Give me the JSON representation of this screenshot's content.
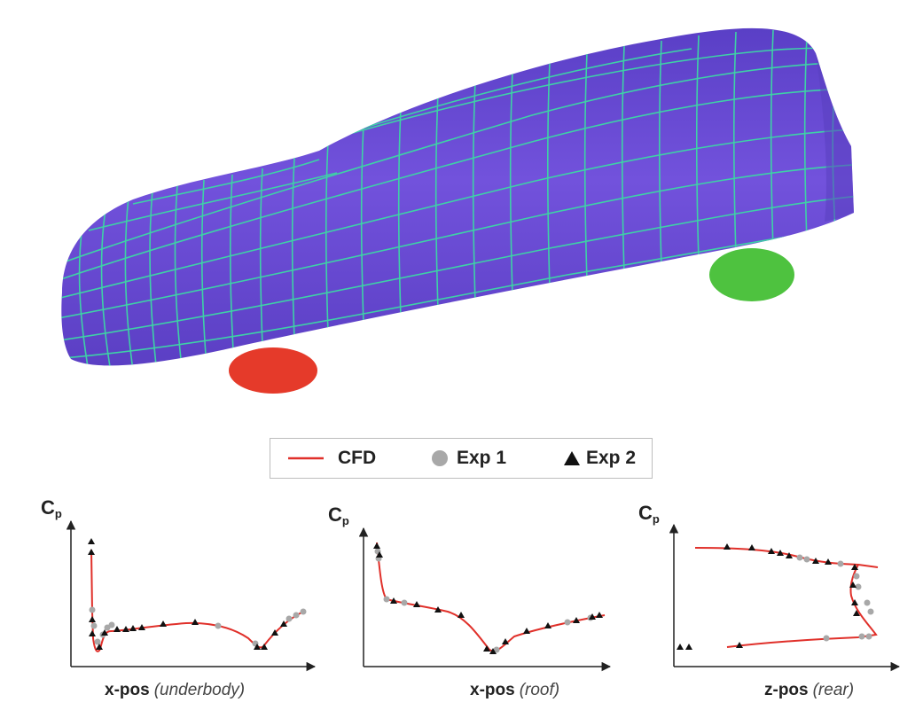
{
  "legend": {
    "cfd": "CFD",
    "exp1": "Exp 1",
    "exp2": "Exp 2"
  },
  "colors": {
    "car_body": "#6a4bd8",
    "mesh_lines": "#3ed1a6",
    "front_wheel": "#e53a2a",
    "rear_wheel": "#4ec23f",
    "cfd_line": "#e0302a",
    "exp1_marker": "#a8a8a8",
    "exp2_marker": "#111111"
  },
  "chart_data": [
    {
      "type": "line",
      "ylabel": "C",
      "ylabel_sub": "p",
      "xlabel": "x-pos",
      "xlabel_paren": "(underbody)"
    },
    {
      "type": "line",
      "ylabel": "C",
      "ylabel_sub": "p",
      "xlabel": "x-pos",
      "xlabel_paren": "(roof)"
    },
    {
      "type": "line",
      "ylabel": "C",
      "ylabel_sub": "p",
      "xlabel": "z-pos",
      "xlabel_paren": "(rear)"
    }
  ]
}
